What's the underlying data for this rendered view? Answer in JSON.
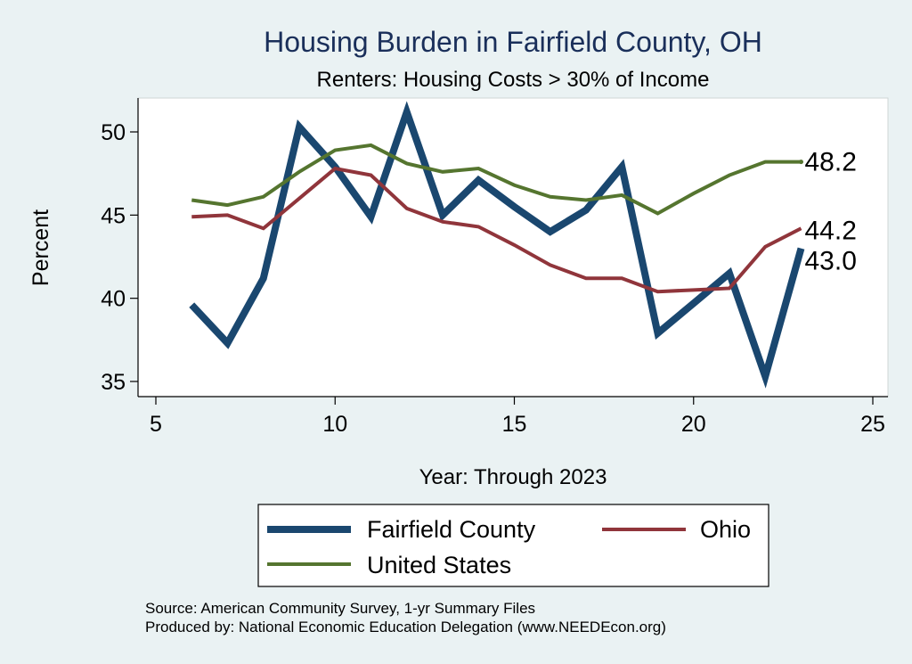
{
  "chart_data": {
    "type": "line",
    "title": "Housing Burden in Fairfield County, OH",
    "subtitle": "Renters: Housing Costs > 30% of Income",
    "xlabel": "Year: Through 2023",
    "ylabel": "Percent",
    "xlim": [
      5,
      25
    ],
    "ylim": [
      34.5,
      52
    ],
    "x_ticks": [
      5,
      10,
      15,
      20,
      25
    ],
    "y_ticks": [
      35,
      40,
      45,
      50
    ],
    "x_tick_labels": [
      "5",
      "10",
      "15",
      "20",
      "25"
    ],
    "y_tick_labels": [
      "35",
      "40",
      "45",
      "50"
    ],
    "grid": false,
    "legend_position": "bottom",
    "x": [
      6,
      7,
      8,
      9,
      10,
      11,
      12,
      13,
      14,
      15,
      16,
      17,
      18,
      19,
      20,
      21,
      22,
      23
    ],
    "series": [
      {
        "name": "Fairfield County",
        "color": "#1a476f",
        "values": [
          39.6,
          37.3,
          41.2,
          50.3,
          47.9,
          44.9,
          51.2,
          45.0,
          47.1,
          45.5,
          44.0,
          45.3,
          47.9,
          37.9,
          39.7,
          41.5,
          35.3,
          43.0
        ],
        "end_label": "43.0"
      },
      {
        "name": "Ohio",
        "color": "#90353b",
        "values": [
          44.9,
          45.0,
          44.2,
          46.0,
          47.8,
          47.4,
          45.4,
          44.6,
          44.3,
          43.2,
          42.0,
          41.2,
          41.2,
          40.4,
          40.5,
          40.6,
          43.1,
          44.2
        ],
        "end_label": "44.2"
      },
      {
        "name": "United States",
        "color": "#55752f",
        "values": [
          45.9,
          45.6,
          46.1,
          47.6,
          48.9,
          49.2,
          48.1,
          47.6,
          47.8,
          46.8,
          46.1,
          45.9,
          46.2,
          45.1,
          46.3,
          47.4,
          48.2,
          48.2
        ],
        "end_label": "48.2"
      }
    ],
    "source_note": "Source: American Community Survey, 1-yr Summary Files",
    "producer_note": "Produced by: National Economic Education Delegation (www.NEEDEcon.org)"
  },
  "colors": {
    "background": "#eaf2f3",
    "plot_background": "#ffffff",
    "title": "#1a2f5a"
  }
}
